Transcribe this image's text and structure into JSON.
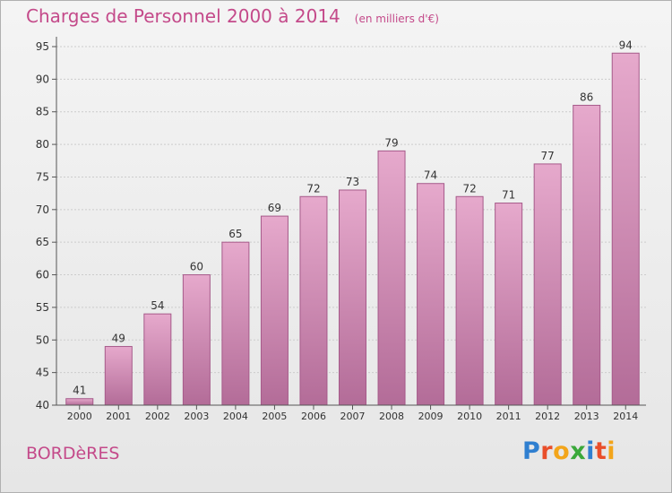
{
  "header": {
    "title": "Charges de Personnel 2000 à 2014",
    "subtitle": "(en milliers d'€)"
  },
  "footer": {
    "city": "BORDèRES",
    "logo_text": "Proxiti",
    "logo_letters": [
      {
        "char": "P",
        "color": "#2f7fd0"
      },
      {
        "char": "r",
        "color": "#e94e2a"
      },
      {
        "char": "o",
        "color": "#f3a51a"
      },
      {
        "char": "x",
        "color": "#3aa83a"
      },
      {
        "char": "i",
        "color": "#2f7fd0"
      },
      {
        "char": "t",
        "color": "#e94e2a"
      },
      {
        "char": "i",
        "color": "#f3a51a"
      }
    ]
  },
  "colors": {
    "bar_top": "#e6a9cc",
    "bar_bottom": "#b36c98",
    "title": "#c44a8a",
    "axis": "#555555",
    "grid": "#cccccc"
  },
  "chart_data": {
    "type": "bar",
    "categories": [
      "2000",
      "2001",
      "2002",
      "2003",
      "2004",
      "2005",
      "2006",
      "2007",
      "2008",
      "2009",
      "2010",
      "2011",
      "2012",
      "2013",
      "2014"
    ],
    "values": [
      41,
      49,
      54,
      60,
      65,
      69,
      72,
      73,
      79,
      74,
      72,
      71,
      77,
      86,
      94
    ],
    "title": "Charges de Personnel 2000 à 2014",
    "subtitle": "(en milliers d'€)",
    "xlabel": "",
    "ylabel": "",
    "ylim": [
      40,
      95
    ],
    "yticks": [
      40,
      45,
      50,
      55,
      60,
      65,
      70,
      75,
      80,
      85,
      90,
      95
    ],
    "grid": true,
    "data_labels": true
  }
}
